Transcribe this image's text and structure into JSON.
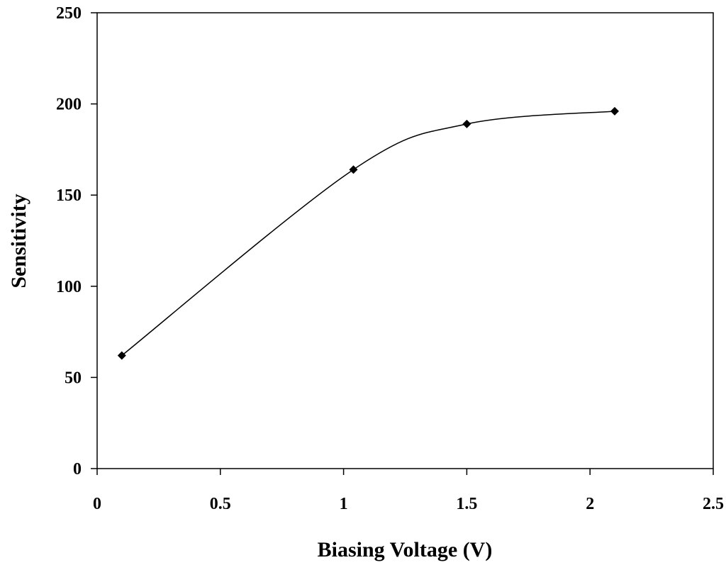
{
  "chart_data": {
    "type": "line",
    "title": "",
    "xlabel": "Biasing Voltage (V)",
    "ylabel": "Sensitivity",
    "xlim": [
      0,
      2.5
    ],
    "ylim": [
      0,
      250
    ],
    "x_ticks": [
      "0",
      "0.5",
      "1",
      "1.5",
      "2",
      "2.5"
    ],
    "y_ticks": [
      "0",
      "50",
      "100",
      "150",
      "200",
      "250"
    ],
    "grid": false,
    "legend": "none",
    "smoothed": true,
    "marker": "diamond",
    "line_color": "#000000",
    "series": [
      {
        "x": [
          0.1,
          1.04,
          1.5,
          2.1
        ],
        "y": [
          62,
          164,
          189,
          196
        ]
      }
    ]
  }
}
